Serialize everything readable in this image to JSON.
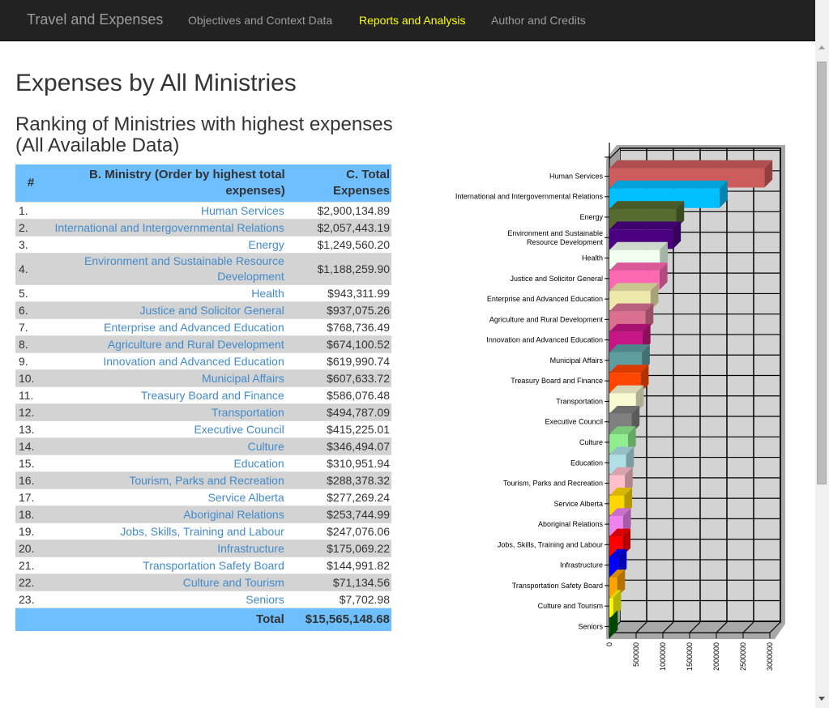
{
  "navbar": {
    "brand": "Travel and Expenses",
    "links": [
      {
        "label": "Objectives and Context Data",
        "active": false
      },
      {
        "label": "Reports and Analysis",
        "active": true
      },
      {
        "label": "Author and Credits",
        "active": false
      }
    ],
    "active_color": "#ffff00"
  },
  "page": {
    "title": "Expenses by All Ministries",
    "subtitle": "Ranking of Ministries with highest expenses (All Available Data)"
  },
  "table": {
    "headers": [
      "#",
      "B. Ministry (Order by highest total expenses)",
      "C. Total Expenses"
    ],
    "rows": [
      {
        "rank": "1.",
        "ministry": "Human Services",
        "total": "$2,900,134.89"
      },
      {
        "rank": "2.",
        "ministry": "International and Intergovernmental Relations",
        "total": "$2,057,443.19"
      },
      {
        "rank": "3.",
        "ministry": "Energy",
        "total": "$1,249,560.20"
      },
      {
        "rank": "4.",
        "ministry": "Environment and Sustainable Resource Development",
        "total": "$1,188,259.90"
      },
      {
        "rank": "5.",
        "ministry": "Health",
        "total": "$943,311.99"
      },
      {
        "rank": "6.",
        "ministry": "Justice and Solicitor General",
        "total": "$937,075.26"
      },
      {
        "rank": "7.",
        "ministry": "Enterprise and Advanced Education",
        "total": "$768,736.49"
      },
      {
        "rank": "8.",
        "ministry": "Agriculture and Rural Development",
        "total": "$674,100.52"
      },
      {
        "rank": "9.",
        "ministry": "Innovation and Advanced Education",
        "total": "$619,990.74"
      },
      {
        "rank": "10.",
        "ministry": "Municipal Affairs",
        "total": "$607,633.72"
      },
      {
        "rank": "11.",
        "ministry": "Treasury Board and Finance",
        "total": "$586,076.48"
      },
      {
        "rank": "12.",
        "ministry": "Transportation",
        "total": "$494,787.09"
      },
      {
        "rank": "13.",
        "ministry": "Executive Council",
        "total": "$415,225.01"
      },
      {
        "rank": "14.",
        "ministry": "Culture",
        "total": "$346,494.07"
      },
      {
        "rank": "15.",
        "ministry": "Education",
        "total": "$310,951.94"
      },
      {
        "rank": "16.",
        "ministry": "Tourism, Parks and Recreation",
        "total": "$288,378.32"
      },
      {
        "rank": "17.",
        "ministry": "Service Alberta",
        "total": "$277,269.24"
      },
      {
        "rank": "18.",
        "ministry": "Aboriginal Relations",
        "total": "$253,744.99"
      },
      {
        "rank": "19.",
        "ministry": "Jobs, Skills, Training and Labour",
        "total": "$247,076.06"
      },
      {
        "rank": "20.",
        "ministry": "Infrastructure",
        "total": "$175,069.22"
      },
      {
        "rank": "21.",
        "ministry": "Transportation Safety Board",
        "total": "$144,991.82"
      },
      {
        "rank": "22.",
        "ministry": "Culture and Tourism",
        "total": "$71,134.56"
      },
      {
        "rank": "23.",
        "ministry": "Seniors",
        "total": "$7,702.98"
      }
    ],
    "total_label": "Total",
    "total_value": "$15,565,148.68"
  },
  "chart_data": {
    "type": "bar",
    "orientation": "horizontal",
    "style": "3d",
    "title": "",
    "xlabel": "",
    "ylabel": "",
    "xlim": [
      0,
      3000000
    ],
    "x_ticks": [
      "0",
      "500000",
      "1000000",
      "1500000",
      "2000000",
      "2500000",
      "3000000"
    ],
    "grid": true,
    "legend": "none",
    "categories": [
      "Human Services",
      "International and Intergovernmental Relations",
      "Energy",
      "Environment and Sustainable Resource Development",
      "Health",
      "Justice and Solicitor General",
      "Enterprise and Advanced Education",
      "Agriculture and Rural Development",
      "Innovation and Advanced Education",
      "Municipal Affairs",
      "Treasury Board and Finance",
      "Transportation",
      "Executive Council",
      "Culture",
      "Education",
      "Tourism, Parks and Recreation",
      "Service Alberta",
      "Aboriginal Relations",
      "Jobs, Skills, Training and Labour",
      "Infrastructure",
      "Transportation Safety Board",
      "Culture and Tourism",
      "Seniors"
    ],
    "category_labels": [
      [
        "Human Services"
      ],
      [
        "International and Intergovernmental Relations"
      ],
      [
        "Energy"
      ],
      [
        "Environment and Sustainable",
        "Resource Development"
      ],
      [
        "Health"
      ],
      [
        "Justice and Solicitor General"
      ],
      [
        "Enterprise and Advanced Education"
      ],
      [
        "Agriculture and Rural Development"
      ],
      [
        "Innovation and Advanced Education"
      ],
      [
        "Municipal Affairs"
      ],
      [
        "Treasury Board and Finance"
      ],
      [
        "Transportation"
      ],
      [
        "Executive Council"
      ],
      [
        "Culture"
      ],
      [
        "Education"
      ],
      [
        "Tourism, Parks and Recreation"
      ],
      [
        "Service Alberta"
      ],
      [
        "Aboriginal Relations"
      ],
      [
        "Jobs, Skills, Training and Labour"
      ],
      [
        "Infrastructure"
      ],
      [
        "Transportation Safety Board"
      ],
      [
        "Culture and Tourism"
      ],
      [
        "Seniors"
      ]
    ],
    "values": [
      2900134.89,
      2057443.19,
      1249560.2,
      1188259.9,
      943311.99,
      937075.26,
      768736.49,
      674100.52,
      619990.74,
      607633.72,
      586076.48,
      494787.09,
      415225.01,
      346494.07,
      310951.94,
      288378.32,
      277269.24,
      253744.99,
      247076.06,
      175069.22,
      144991.82,
      71134.56,
      7702.98
    ],
    "colors": [
      "#cd5c5c",
      "#00bfff",
      "#556b2f",
      "#4b0082",
      "#f0fff0",
      "#ff69b4",
      "#eee8aa",
      "#db7093",
      "#c71585",
      "#5f9ea0",
      "#ff4500",
      "#fafad2",
      "#808080",
      "#90ee90",
      "#b0e0e6",
      "#ffc0cb",
      "#ffd700",
      "#ee82ee",
      "#ff0000",
      "#0000ff",
      "#ffa500",
      "#ffff00",
      "#006400"
    ]
  }
}
